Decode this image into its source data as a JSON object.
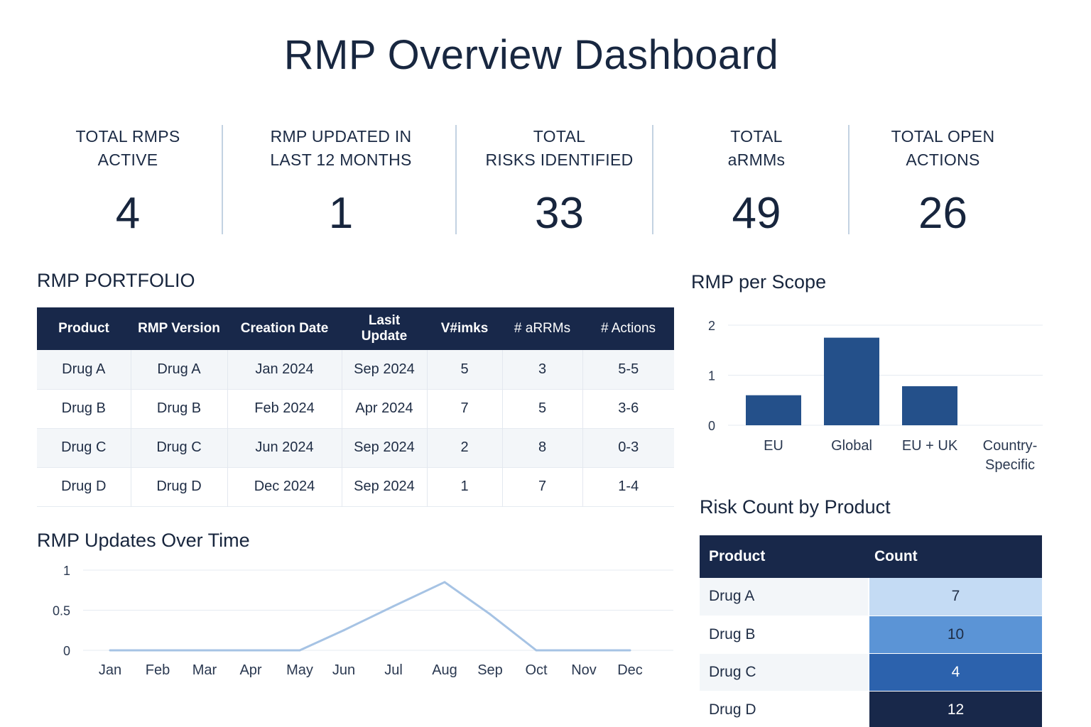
{
  "page": {
    "title": "RMP Overview Dashboard"
  },
  "kpis": [
    {
      "label": "TOTAL RMPS\nACTIVE",
      "value": "4"
    },
    {
      "label": "RMP UPDATED IN\nLAST 12 MONTHS",
      "value": "1"
    },
    {
      "label": "TOTAL\nRISKS IDENTIFIED",
      "value": "33"
    },
    {
      "label": "TOTAL\naRMMs",
      "value": "49"
    },
    {
      "label": "TOTAL OPEN\nACTIONS",
      "value": "26"
    }
  ],
  "portfolio": {
    "title": "RMP PORTFOLIO",
    "columns": [
      "Product",
      "RMP Version",
      "Creation Date",
      "Lasit Update",
      "V#imks",
      "# aRRMs",
      "# Actions"
    ],
    "rows": [
      [
        "Drug A",
        "Drug A",
        "Jan 2024",
        "Sep 2024",
        "5",
        "3",
        "5-5"
      ],
      [
        "Drug B",
        "Drug B",
        "Feb 2024",
        "Apr 2024",
        "7",
        "5",
        "3-6"
      ],
      [
        "Drug C",
        "Drug C",
        "Jun 2024",
        "Sep 2024",
        "2",
        "8",
        "0-3"
      ],
      [
        "Drug D",
        "Drug D",
        "Dec 2024",
        "Sep 2024",
        "1",
        "7",
        "1-4"
      ]
    ]
  },
  "updates_chart": {
    "title": "RMP Updates Over Time",
    "chart_data": {
      "type": "line",
      "x": [
        "Jan",
        "Feb",
        "Mar",
        "Apr",
        "May",
        "Jun",
        "Jul",
        "Aug",
        "Sep",
        "Oct",
        "Nov",
        "Dec"
      ],
      "values": [
        0,
        0,
        0,
        0,
        0,
        0.25,
        0.55,
        0.85,
        0.45,
        0,
        0,
        0
      ],
      "yticks": [
        "1",
        "0.5",
        "0"
      ],
      "ylim": [
        0,
        1
      ],
      "grid": true,
      "color": "#a6c3e4"
    }
  },
  "scope_chart": {
    "title": "RMP per Scope",
    "chart_data": {
      "type": "bar",
      "categories": [
        "EU",
        "Global",
        "EU + UK",
        "Country-\nSpecific"
      ],
      "values": [
        0.6,
        1.75,
        0.78,
        0
      ],
      "yticks": [
        "2",
        "1",
        "0"
      ],
      "ylim": [
        0,
        2
      ],
      "grid": true,
      "color": "#24508a"
    }
  },
  "risk_table": {
    "title": "Risk Count by Product",
    "columns": [
      "Product",
      "Count"
    ],
    "rows": [
      {
        "product": "Drug A",
        "count": "7",
        "color": "#c4dbf4",
        "text_color": "#1f2d45"
      },
      {
        "product": "Drug B",
        "count": "10",
        "color": "#5b94d6",
        "text_color": "#1f2d45"
      },
      {
        "product": "Drug C",
        "count": "4",
        "color": "#2c62ad",
        "text_color": "#ffffff"
      },
      {
        "product": "Drug D",
        "count": "12",
        "color": "#18284a",
        "text_color": "#ffffff"
      }
    ]
  }
}
